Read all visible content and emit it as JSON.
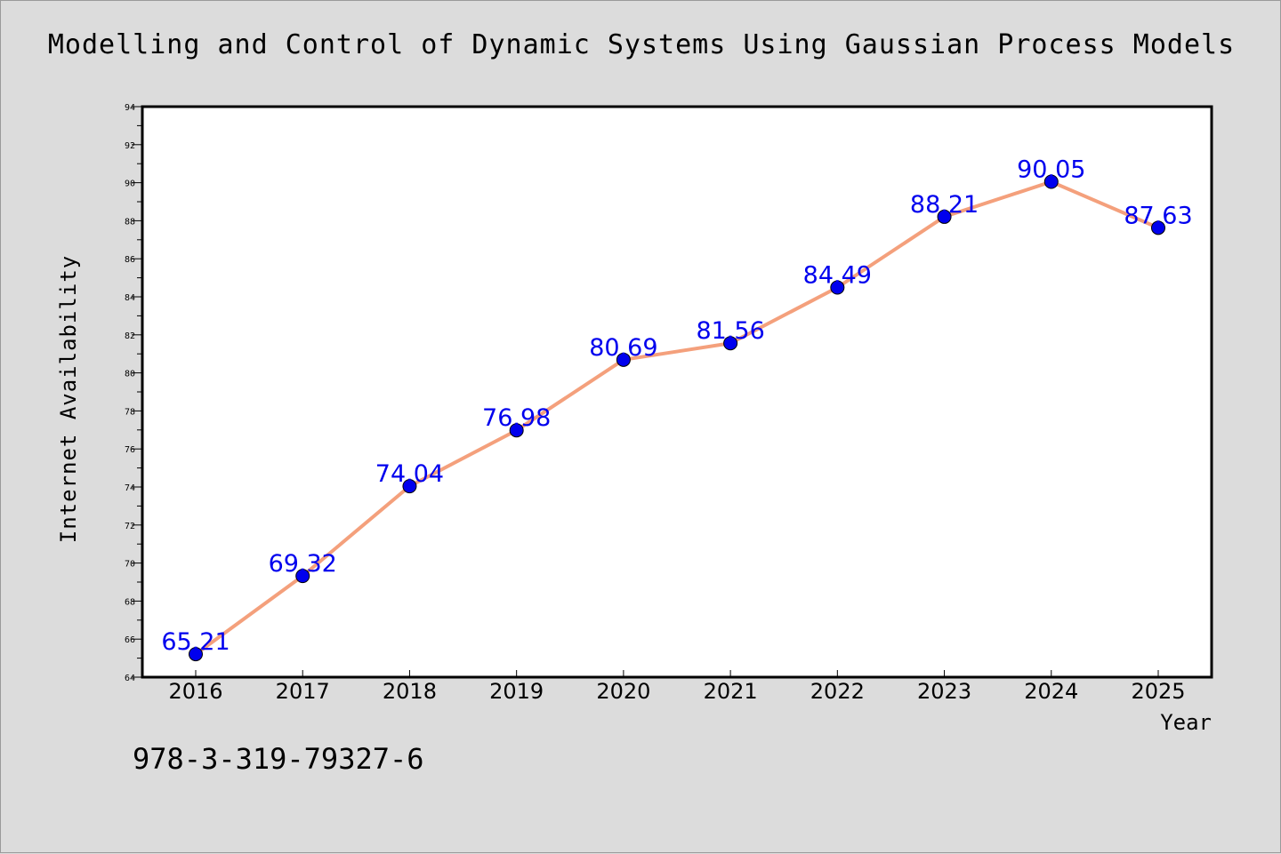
{
  "chart_data": {
    "type": "line",
    "title": "Modelling and Control of Dynamic Systems Using Gaussian Process Models",
    "subtitle": "",
    "xlabel": "Year",
    "ylabel": "Internet Availability",
    "categories": [
      "2016",
      "2017",
      "2018",
      "2019",
      "2020",
      "2021",
      "2022",
      "2023",
      "2024",
      "2025"
    ],
    "series": [
      {
        "values": [
          65.21,
          69.32,
          74.04,
          76.98,
          80.69,
          81.56,
          84.49,
          88.21,
          90.05,
          87.63
        ],
        "data_labels": [
          "65.21",
          "69.32",
          "74.04",
          "76.98",
          "80.69",
          "81.56",
          "84.49",
          "88.21",
          "90.05",
          "87.63"
        ],
        "line_color": "#f4a07c",
        "marker_color": "#0000ee",
        "label_color": "#0000ee"
      }
    ],
    "ylim": [
      64,
      94
    ],
    "yticks": [
      "64",
      "66",
      "68",
      "70",
      "72",
      "74",
      "76",
      "78",
      "80",
      "82",
      "84",
      "86",
      "88",
      "90",
      "92",
      "94"
    ],
    "grid": false,
    "legend": "none",
    "plot_background": "#ffffff",
    "page_background": "#dcdcdc"
  },
  "footer": {
    "isbn": "978-3-319-79327-6"
  }
}
